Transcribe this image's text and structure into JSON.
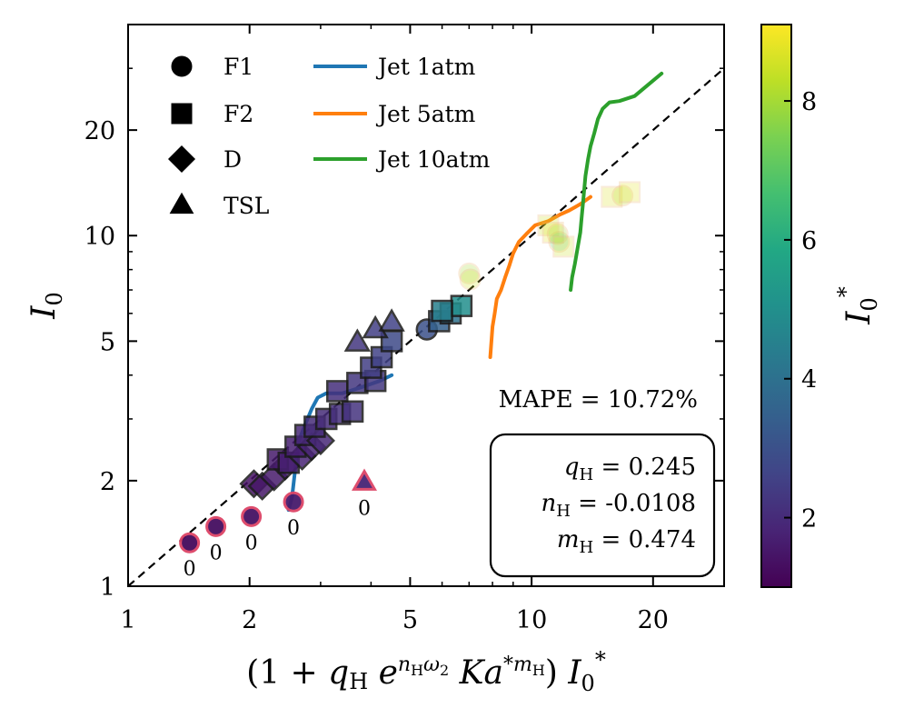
{
  "chart_data": {
    "type": "scatter",
    "xscale": "log",
    "yscale": "log",
    "xlim": [
      1,
      30
    ],
    "ylim": [
      1,
      40
    ],
    "xlabel": "(1 + q_H e^{n_H ω₂} Ka*^{m_H}) I₀*",
    "ylabel": "I₀",
    "xticks": [
      "1",
      "2",
      "5",
      "10",
      "20"
    ],
    "yticks": [
      "1",
      "2",
      "5",
      "10",
      "20"
    ],
    "annotation": "MAPE = 10.72%",
    "param_box": [
      {
        "name": "q",
        "sub": "H",
        "value": "= 0.245"
      },
      {
        "name": "n",
        "sub": "H",
        "value": "= -0.0108"
      },
      {
        "name": "m",
        "sub": "H",
        "value": "= 0.474"
      }
    ],
    "legend_markers": [
      {
        "label": "F1",
        "marker": "circle"
      },
      {
        "label": "F2",
        "marker": "square"
      },
      {
        "label": "D",
        "marker": "diamond"
      },
      {
        "label": "TSL",
        "marker": "triangle"
      }
    ],
    "lines": [
      {
        "name": "Jet 1atm",
        "color": "#1f77b4",
        "points": [
          [
            2.5,
            1.65
          ],
          [
            2.55,
            1.8
          ],
          [
            2.6,
            2.2
          ],
          [
            2.65,
            2.6
          ],
          [
            2.75,
            2.9
          ],
          [
            2.85,
            3.2
          ],
          [
            2.95,
            3.45
          ],
          [
            3.1,
            3.55
          ],
          [
            3.4,
            3.55
          ],
          [
            3.8,
            3.7
          ],
          [
            4.2,
            3.85
          ],
          [
            4.5,
            4.0
          ]
        ]
      },
      {
        "name": "Jet 5atm",
        "color": "#ff7f0e",
        "points": [
          [
            7.9,
            4.5
          ],
          [
            7.95,
            5.0
          ],
          [
            8.0,
            5.5
          ],
          [
            8.1,
            6.0
          ],
          [
            8.2,
            6.6
          ],
          [
            8.4,
            7.0
          ],
          [
            8.6,
            7.6
          ],
          [
            8.8,
            8.2
          ],
          [
            9.0,
            8.9
          ],
          [
            9.3,
            9.6
          ],
          [
            9.7,
            10.1
          ],
          [
            10.2,
            10.7
          ],
          [
            11.0,
            11.0
          ],
          [
            11.8,
            11.5
          ],
          [
            12.4,
            11.8
          ],
          [
            13.2,
            12.3
          ],
          [
            14.0,
            12.9
          ]
        ]
      },
      {
        "name": "Jet 10atm",
        "color": "#2ca02c",
        "points": [
          [
            12.5,
            7.0
          ],
          [
            12.6,
            7.6
          ],
          [
            12.8,
            8.3
          ],
          [
            13.0,
            9.2
          ],
          [
            13.2,
            10.2
          ],
          [
            13.3,
            11.2
          ],
          [
            13.4,
            12.3
          ],
          [
            13.5,
            13.5
          ],
          [
            13.6,
            14.8
          ],
          [
            13.8,
            16.5
          ],
          [
            14.0,
            18.0
          ],
          [
            14.3,
            19.6
          ],
          [
            14.6,
            21.5
          ],
          [
            15.0,
            23.0
          ],
          [
            15.6,
            24.0
          ],
          [
            16.5,
            24.2
          ],
          [
            18.0,
            25.0
          ],
          [
            19.5,
            27.0
          ],
          [
            21.0,
            29.0
          ]
        ]
      }
    ],
    "points": [
      {
        "marker": "circle",
        "x": 1.42,
        "y": 1.33,
        "c": 1.2,
        "edge": "pink",
        "label": "0"
      },
      {
        "marker": "circle",
        "x": 1.65,
        "y": 1.48,
        "c": 1.3,
        "edge": "pink",
        "label": "0"
      },
      {
        "marker": "circle",
        "x": 2.02,
        "y": 1.58,
        "c": 1.4,
        "edge": "pink",
        "label": "0"
      },
      {
        "marker": "circle",
        "x": 2.57,
        "y": 1.74,
        "c": 1.6,
        "edge": "pink",
        "label": "0"
      },
      {
        "marker": "triangle",
        "x": 3.85,
        "y": 1.98,
        "c": 1.8,
        "edge": "pink",
        "label": "0"
      },
      {
        "marker": "diamond",
        "x": 2.05,
        "y": 1.96,
        "c": 1.4
      },
      {
        "marker": "diamond",
        "x": 2.15,
        "y": 1.93,
        "c": 1.5
      },
      {
        "marker": "diamond",
        "x": 2.3,
        "y": 2.05,
        "c": 1.6
      },
      {
        "marker": "diamond",
        "x": 2.45,
        "y": 2.2,
        "c": 1.7
      },
      {
        "marker": "square",
        "x": 2.35,
        "y": 2.3,
        "c": 1.6
      },
      {
        "marker": "square",
        "x": 2.5,
        "y": 2.25,
        "c": 1.7
      },
      {
        "marker": "diamond",
        "x": 2.7,
        "y": 2.35,
        "c": 1.8
      },
      {
        "marker": "square",
        "x": 2.6,
        "y": 2.5,
        "c": 1.7
      },
      {
        "marker": "diamond",
        "x": 2.85,
        "y": 2.5,
        "c": 1.8
      },
      {
        "marker": "square",
        "x": 2.75,
        "y": 2.7,
        "c": 1.9
      },
      {
        "marker": "diamond",
        "x": 3.0,
        "y": 2.6,
        "c": 1.9
      },
      {
        "marker": "square",
        "x": 2.9,
        "y": 2.85,
        "c": 2.0
      },
      {
        "marker": "square",
        "x": 3.1,
        "y": 3.0,
        "c": 2.0
      },
      {
        "marker": "square",
        "x": 3.35,
        "y": 3.1,
        "c": 2.1
      },
      {
        "marker": "square",
        "x": 3.6,
        "y": 3.15,
        "c": 2.2
      },
      {
        "marker": "square",
        "x": 3.3,
        "y": 3.6,
        "c": 2.1
      },
      {
        "marker": "square",
        "x": 3.7,
        "y": 3.8,
        "c": 2.3
      },
      {
        "marker": "square",
        "x": 4.1,
        "y": 3.85,
        "c": 2.3
      },
      {
        "marker": "square",
        "x": 4.0,
        "y": 4.2,
        "c": 2.5
      },
      {
        "marker": "square",
        "x": 4.25,
        "y": 4.5,
        "c": 2.6
      },
      {
        "marker": "square",
        "x": 4.5,
        "y": 5.0,
        "c": 2.8
      },
      {
        "marker": "triangle",
        "x": 3.7,
        "y": 4.95,
        "c": 2.3
      },
      {
        "marker": "triangle",
        "x": 4.1,
        "y": 5.4,
        "c": 2.5
      },
      {
        "marker": "triangle",
        "x": 4.5,
        "y": 5.65,
        "c": 2.6
      },
      {
        "marker": "circle",
        "x": 5.5,
        "y": 5.4,
        "c": 3.0
      },
      {
        "marker": "square",
        "x": 5.9,
        "y": 5.7,
        "c": 3.5
      },
      {
        "marker": "square",
        "x": 6.3,
        "y": 6.0,
        "c": 4.0
      },
      {
        "marker": "square",
        "x": 6.7,
        "y": 6.3,
        "c": 5.0
      },
      {
        "marker": "square",
        "x": 6.0,
        "y": 6.1,
        "c": 4.5
      },
      {
        "marker": "circle",
        "x": 7.0,
        "y": 7.8,
        "c": 8.0,
        "faded": true
      },
      {
        "marker": "circle",
        "x": 7.05,
        "y": 7.5,
        "c": 8.5,
        "faded": true
      },
      {
        "marker": "square",
        "x": 11.0,
        "y": 10.7,
        "c": 8.5,
        "faded": true
      },
      {
        "marker": "square",
        "x": 11.3,
        "y": 10.2,
        "c": 8.8,
        "faded": true
      },
      {
        "marker": "circle",
        "x": 11.7,
        "y": 9.6,
        "c": 7.2,
        "faded": true
      },
      {
        "marker": "circle",
        "x": 11.6,
        "y": 10.1,
        "c": 8.0,
        "faded": true
      },
      {
        "marker": "square",
        "x": 12.0,
        "y": 9.3,
        "c": 8.5,
        "faded": true
      },
      {
        "marker": "square",
        "x": 15.8,
        "y": 12.9,
        "c": 8.7,
        "faded": true
      },
      {
        "marker": "circle",
        "x": 16.8,
        "y": 13.0,
        "c": 8.3,
        "faded": true
      },
      {
        "marker": "square",
        "x": 17.5,
        "y": 13.3,
        "c": 8.8,
        "faded": true
      }
    ],
    "colorbar": {
      "label": "I₀*",
      "colormap": "viridis",
      "range": [
        1,
        9.1
      ],
      "ticks": [
        "2",
        "4",
        "6",
        "8"
      ],
      "tick_values": [
        2,
        4,
        6,
        8
      ]
    }
  }
}
